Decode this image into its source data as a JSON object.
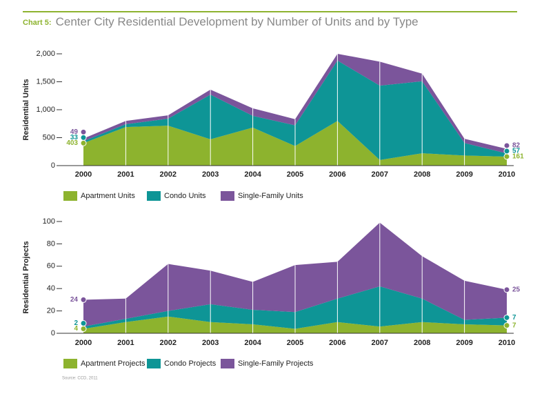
{
  "title_label": "Chart 5:",
  "title": "Center City Residential Development by Number of Units and by Type",
  "source": "Source: CCD, 2011",
  "chart_data": [
    {
      "type": "area",
      "stacked": true,
      "y_label": "Residential Units",
      "categories": [
        "2000",
        "2001",
        "2002",
        "2003",
        "2004",
        "2005",
        "2006",
        "2007",
        "2008",
        "2009",
        "2010"
      ],
      "ylim": [
        0,
        2000
      ],
      "yticks": [
        0,
        500,
        {
          "value": 1000,
          "label": "1,000"
        },
        {
          "value": 1500,
          "label": "1,500"
        },
        {
          "value": 2000,
          "label": "2,000"
        }
      ],
      "series": [
        {
          "name": "Apartment Units",
          "color": "#8db32e",
          "values": [
            403,
            690,
            715,
            470,
            680,
            350,
            800,
            100,
            220,
            180,
            161
          ]
        },
        {
          "name": "Condo Units",
          "color": "#0e9596",
          "values": [
            33,
            50,
            125,
            800,
            210,
            370,
            1080,
            1330,
            1290,
            225,
            57
          ]
        },
        {
          "name": "Single-Family Units",
          "color": "#7b559b",
          "values": [
            49,
            60,
            60,
            90,
            135,
            110,
            120,
            430,
            135,
            75,
            82
          ]
        }
      ]
    },
    {
      "type": "area",
      "stacked": true,
      "y_label": "Residential Projects",
      "categories": [
        "2000",
        "2001",
        "2002",
        "2003",
        "2004",
        "2005",
        "2006",
        "2007",
        "2008",
        "2009",
        "2010"
      ],
      "ylim": [
        0,
        100
      ],
      "yticks": [
        0,
        20,
        40,
        60,
        80,
        100
      ],
      "series": [
        {
          "name": "Apartment Projects",
          "color": "#8db32e",
          "values": [
            4,
            10,
            15,
            10,
            8,
            4,
            10,
            6,
            10,
            8,
            7
          ]
        },
        {
          "name": "Condo Projects",
          "color": "#0e9596",
          "values": [
            2,
            3,
            5,
            16,
            13,
            15,
            21,
            36,
            21,
            4,
            7
          ]
        },
        {
          "name": "Single-Family Projects",
          "color": "#7b559b",
          "values": [
            24,
            18,
            42,
            30,
            25,
            42,
            33,
            57,
            38,
            35,
            25
          ]
        }
      ]
    }
  ]
}
